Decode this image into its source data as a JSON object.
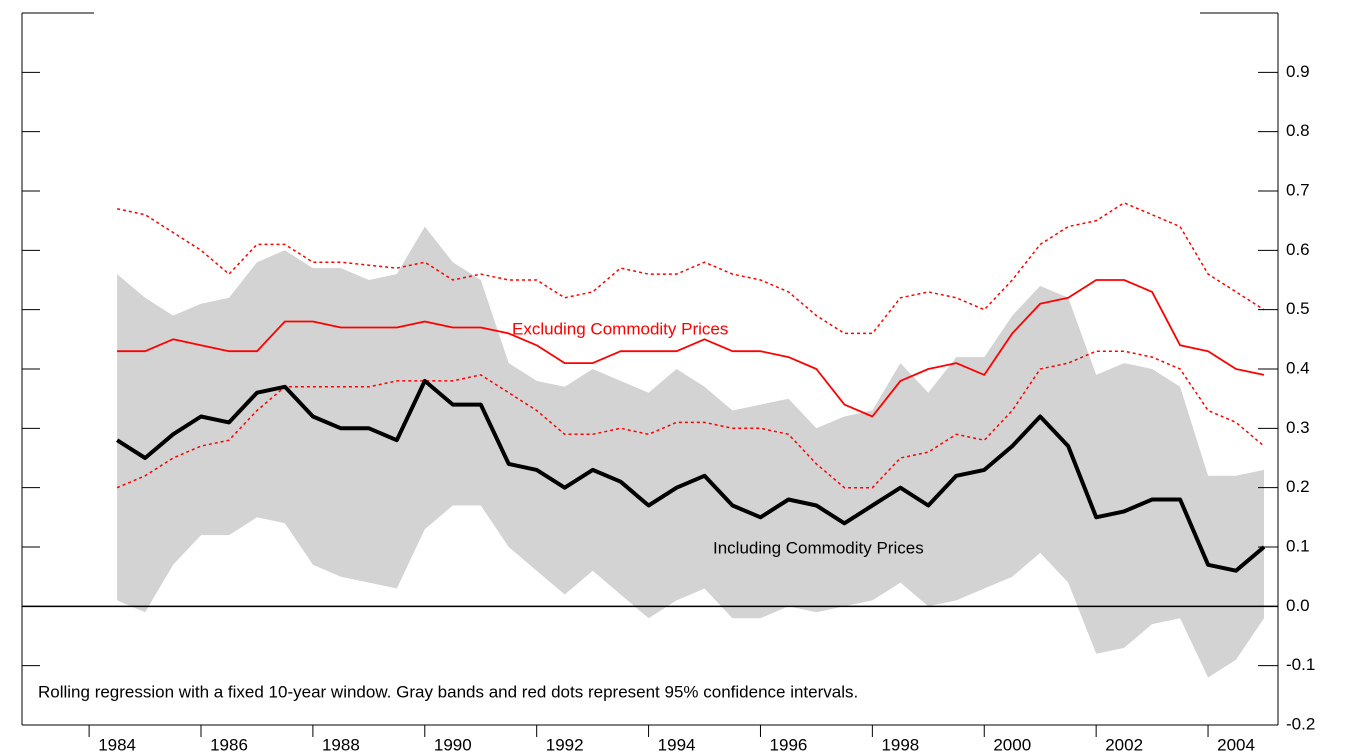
{
  "chart_data": {
    "type": "line",
    "x": [
      1984,
      1984.5,
      1985,
      1985.5,
      1986,
      1986.5,
      1987,
      1987.5,
      1988,
      1988.5,
      1989,
      1989.5,
      1990,
      1990.5,
      1991,
      1991.5,
      1992,
      1992.5,
      1993,
      1993.5,
      1994,
      1994.5,
      1995,
      1995.5,
      1996,
      1996.5,
      1997,
      1997.5,
      1998,
      1998.5,
      1999,
      1999.5,
      2000,
      2000.5,
      2001,
      2001.5,
      2002,
      2002.5,
      2003,
      2003.5,
      2004,
      2004.5
    ],
    "series": [
      {
        "color": "#000000",
        "band_color": "#d3d3d3",
        "values": [
          0.28,
          0.25,
          0.29,
          0.32,
          0.31,
          0.36,
          0.37,
          0.32,
          0.3,
          0.3,
          0.28,
          0.38,
          0.34,
          0.34,
          0.24,
          0.23,
          0.2,
          0.23,
          0.21,
          0.17,
          0.2,
          0.22,
          0.17,
          0.15,
          0.18,
          0.17,
          0.14,
          0.17,
          0.2,
          0.17,
          0.22,
          0.23,
          0.27,
          0.32,
          0.27,
          0.15,
          0.16,
          0.18,
          0.18,
          0.07,
          0.06,
          0.1
        ],
        "upper": [
          0.56,
          0.52,
          0.49,
          0.51,
          0.52,
          0.58,
          0.6,
          0.57,
          0.57,
          0.55,
          0.56,
          0.64,
          0.58,
          0.55,
          0.41,
          0.38,
          0.37,
          0.4,
          0.38,
          0.36,
          0.4,
          0.37,
          0.33,
          0.34,
          0.35,
          0.3,
          0.32,
          0.33,
          0.41,
          0.36,
          0.42,
          0.42,
          0.49,
          0.54,
          0.52,
          0.39,
          0.41,
          0.4,
          0.37,
          0.22,
          0.22,
          0.23
        ],
        "lower": [
          0.01,
          -0.01,
          0.07,
          0.12,
          0.12,
          0.15,
          0.14,
          0.07,
          0.05,
          0.04,
          0.03,
          0.13,
          0.17,
          0.17,
          0.1,
          0.06,
          0.02,
          0.06,
          0.02,
          -0.02,
          0.01,
          0.03,
          -0.02,
          -0.02,
          0.0,
          -0.01,
          0.0,
          0.01,
          0.04,
          0.0,
          0.01,
          0.03,
          0.05,
          0.09,
          0.04,
          -0.08,
          -0.07,
          -0.03,
          -0.02,
          -0.12,
          -0.09,
          -0.02
        ]
      },
      {
        "color": "#ff0000",
        "bound_style": "dotted",
        "values": [
          0.43,
          0.43,
          0.45,
          0.44,
          0.43,
          0.43,
          0.48,
          0.48,
          0.47,
          0.47,
          0.47,
          0.48,
          0.47,
          0.47,
          0.46,
          0.44,
          0.41,
          0.41,
          0.43,
          0.43,
          0.43,
          0.45,
          0.43,
          0.43,
          0.42,
          0.4,
          0.34,
          0.32,
          0.38,
          0.4,
          0.41,
          0.39,
          0.46,
          0.51,
          0.52,
          0.55,
          0.55,
          0.53,
          0.44,
          0.43,
          0.4,
          0.39
        ],
        "upper": [
          0.67,
          0.66,
          0.63,
          0.6,
          0.56,
          0.61,
          0.61,
          0.58,
          0.58,
          0.575,
          0.57,
          0.58,
          0.55,
          0.56,
          0.55,
          0.55,
          0.52,
          0.53,
          0.57,
          0.56,
          0.56,
          0.58,
          0.56,
          0.55,
          0.53,
          0.49,
          0.46,
          0.46,
          0.52,
          0.53,
          0.52,
          0.5,
          0.55,
          0.61,
          0.64,
          0.65,
          0.68,
          0.66,
          0.64,
          0.56,
          0.53,
          0.5
        ],
        "lower": [
          0.2,
          0.22,
          0.25,
          0.27,
          0.28,
          0.33,
          0.37,
          0.37,
          0.37,
          0.37,
          0.38,
          0.38,
          0.38,
          0.39,
          0.36,
          0.33,
          0.29,
          0.29,
          0.3,
          0.29,
          0.31,
          0.31,
          0.3,
          0.3,
          0.29,
          0.24,
          0.2,
          0.2,
          0.25,
          0.26,
          0.29,
          0.28,
          0.33,
          0.4,
          0.41,
          0.43,
          0.43,
          0.42,
          0.4,
          0.33,
          0.31,
          0.27
        ]
      }
    ],
    "annotations": [
      "Excluding Commodity Prices",
      "Including Commodity Prices",
      "Rolling regression with a fixed 10-year window. Gray bands and red dots represent 95% confidence intervals."
    ],
    "xlim": [
      1982.3,
      2004.75
    ],
    "xticks": [
      1984,
      1986,
      1988,
      1990,
      1992,
      1994,
      1996,
      1998,
      2000,
      2002,
      2004
    ],
    "ylim": [
      -0.2,
      1.0
    ],
    "yticks": [
      -0.2,
      -0.1,
      {
        "value": 0,
        "label": "0.0"
      },
      0.1,
      0.2,
      0.3,
      0.4,
      0.5,
      0.6,
      0.7,
      0.8,
      0.9
    ],
    "zero_line": true
  }
}
